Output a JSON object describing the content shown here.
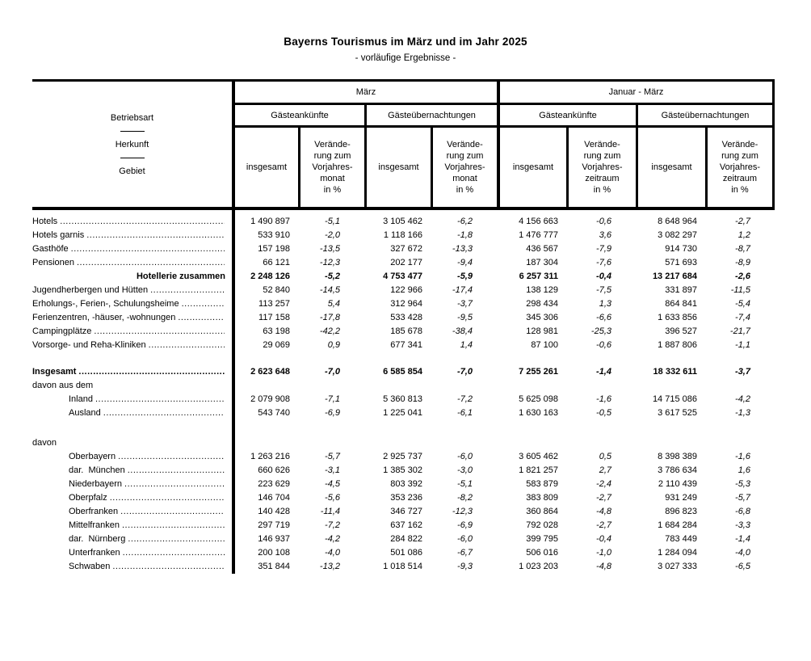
{
  "page": {
    "title": "Bayerns Tourismus im März und im Jahr 2025",
    "subtitle": "- vorläufige Ergebnisse -"
  },
  "table": {
    "stub": {
      "line1": "Betriebsart",
      "line2": "Herkunft",
      "line3": "Gebiet"
    },
    "periods": {
      "maerz": {
        "label": "März",
        "measure1": "Gästeankünfte",
        "measure2": "Gästeübernachtungen",
        "sub_total": "insgesamt",
        "sub_change": "Verände-\nrung zum\nVorjahres-\nmonat\nin %"
      },
      "januar_maerz": {
        "label": "Januar - März",
        "measure1": "Gästeankünfte",
        "measure2": "Gästeübernachtungen",
        "sub_total": "insgesamt",
        "sub_change": "Verände-\nrung zum\nVorjahres-\nzeitraum\nin %"
      }
    },
    "rows": [
      {
        "label": "Hotels",
        "style": "normal",
        "indent": false,
        "dots": true,
        "gap_before": 0,
        "values": [
          "1 490 897",
          "-5,1",
          "3 105 462",
          "-6,2",
          "4 156 663",
          "-0,6",
          "8 648 964",
          "-2,7"
        ]
      },
      {
        "label": "Hotels garnis",
        "style": "normal",
        "indent": false,
        "dots": true,
        "gap_before": 0,
        "values": [
          "533 910",
          "-2,0",
          "1 118 166",
          "-1,8",
          "1 476 777",
          "3,6",
          "3 082 297",
          "1,2"
        ]
      },
      {
        "label": "Gasthöfe",
        "style": "normal",
        "indent": false,
        "dots": true,
        "gap_before": 0,
        "values": [
          "157 198",
          "-13,5",
          "327 672",
          "-13,3",
          "436 567",
          "-7,9",
          "914 730",
          "-8,7"
        ]
      },
      {
        "label": "Pensionen",
        "style": "normal",
        "indent": false,
        "dots": true,
        "gap_before": 0,
        "values": [
          "66 121",
          "-12,3",
          "202 177",
          "-9,4",
          "187 304",
          "-7,6",
          "571 693",
          "-8,9"
        ]
      },
      {
        "label": "Hotellerie zusammen",
        "style": "subtotal",
        "indent": false,
        "dots": false,
        "gap_before": 0,
        "values": [
          "2 248 126",
          "-5,2",
          "4 753 477",
          "-5,9",
          "6 257 311",
          "-0,4",
          "13 217 684",
          "-2,6"
        ]
      },
      {
        "label": "Jugendherbergen und Hütten",
        "style": "normal",
        "indent": false,
        "dots": true,
        "gap_before": 0,
        "values": [
          "52 840",
          "-14,5",
          "122 966",
          "-17,4",
          "138 129",
          "-7,5",
          "331 897",
          "-11,5"
        ]
      },
      {
        "label": "Erholungs-, Ferien-, Schulungsheime",
        "style": "normal",
        "indent": false,
        "dots": true,
        "gap_before": 0,
        "values": [
          "113 257",
          "5,4",
          "312 964",
          "-3,7",
          "298 434",
          "1,3",
          "864 841",
          "-5,4"
        ]
      },
      {
        "label": "Ferienzentren, -häuser, -wohnungen",
        "style": "normal",
        "indent": false,
        "dots": true,
        "gap_before": 0,
        "values": [
          "117 158",
          "-17,8",
          "533 428",
          "-9,5",
          "345 306",
          "-6,6",
          "1 633 856",
          "-7,4"
        ]
      },
      {
        "label": "Campingplätze",
        "style": "normal",
        "indent": false,
        "dots": true,
        "gap_before": 0,
        "values": [
          "63 198",
          "-42,2",
          "185 678",
          "-38,4",
          "128 981",
          "-25,3",
          "396 527",
          "-21,7"
        ]
      },
      {
        "label": "Vorsorge- und Reha-Kliniken",
        "style": "normal",
        "indent": false,
        "dots": true,
        "gap_before": 0,
        "values": [
          "29 069",
          "0,9",
          "677 341",
          "1,4",
          "87 100",
          "-0,6",
          "1 887 806",
          "-1,1"
        ]
      },
      {
        "label": "Insgesamt",
        "style": "total",
        "indent": false,
        "dots": true,
        "gap_before": 16,
        "values": [
          "2 623 648",
          "-7,0",
          "6 585 854",
          "-7,0",
          "7 255 261",
          "-1,4",
          "18 332 611",
          "-3,7"
        ]
      },
      {
        "label": "davon aus dem",
        "style": "normal",
        "indent": false,
        "dots": false,
        "gap_before": 0,
        "values": []
      },
      {
        "label": "Inland",
        "style": "normal",
        "indent": true,
        "dots": true,
        "gap_before": 0,
        "values": [
          "2 079 908",
          "-7,1",
          "5 360 813",
          "-7,2",
          "5 625 098",
          "-1,6",
          "14 715 086",
          "-4,2"
        ]
      },
      {
        "label": "Ausland",
        "style": "normal",
        "indent": true,
        "dots": true,
        "gap_before": 0,
        "values": [
          "543 740",
          "-6,9",
          "1 225 041",
          "-6,1",
          "1 630 163",
          "-0,5",
          "3 617 525",
          "-1,3"
        ]
      },
      {
        "label": "davon",
        "style": "normal",
        "indent": false,
        "dots": false,
        "gap_before": 20,
        "values": []
      },
      {
        "label": "Oberbayern",
        "style": "normal",
        "indent": true,
        "dots": true,
        "gap_before": 0,
        "values": [
          "1 263 216",
          "-5,7",
          "2 925 737",
          "-6,0",
          "3 605 462",
          "0,5",
          "8 398 389",
          "-1,6"
        ]
      },
      {
        "label": "dar.  München",
        "style": "normal",
        "indent": true,
        "dots": true,
        "gap_before": 0,
        "values": [
          "660 626",
          "-3,1",
          "1 385 302",
          "-3,0",
          "1 821 257",
          "2,7",
          "3 786 634",
          "1,6"
        ]
      },
      {
        "label": "Niederbayern",
        "style": "normal",
        "indent": true,
        "dots": true,
        "gap_before": 0,
        "values": [
          "223 629",
          "-4,5",
          "803 392",
          "-5,1",
          "583 879",
          "-2,4",
          "2 110 439",
          "-5,3"
        ]
      },
      {
        "label": "Oberpfalz",
        "style": "normal",
        "indent": true,
        "dots": true,
        "gap_before": 0,
        "values": [
          "146 704",
          "-5,6",
          "353 236",
          "-8,2",
          "383 809",
          "-2,7",
          "931 249",
          "-5,7"
        ]
      },
      {
        "label": "Oberfranken",
        "style": "normal",
        "indent": true,
        "dots": true,
        "gap_before": 0,
        "values": [
          "140 428",
          "-11,4",
          "346 727",
          "-12,3",
          "360 864",
          "-4,8",
          "896 823",
          "-6,8"
        ]
      },
      {
        "label": "Mittelfranken",
        "style": "normal",
        "indent": true,
        "dots": true,
        "gap_before": 0,
        "values": [
          "297 719",
          "-7,2",
          "637 162",
          "-6,9",
          "792 028",
          "-2,7",
          "1 684 284",
          "-3,3"
        ]
      },
      {
        "label": "dar.  Nürnberg",
        "style": "normal",
        "indent": true,
        "dots": true,
        "gap_before": 0,
        "values": [
          "146 937",
          "-4,2",
          "284 822",
          "-6,0",
          "399 795",
          "-0,4",
          "783 449",
          "-1,4"
        ]
      },
      {
        "label": "Unterfranken",
        "style": "normal",
        "indent": true,
        "dots": true,
        "gap_before": 0,
        "values": [
          "200 108",
          "-4,0",
          "501 086",
          "-6,7",
          "506 016",
          "-1,0",
          "1 284 094",
          "-4,0"
        ]
      },
      {
        "label": "Schwaben",
        "style": "normal",
        "indent": true,
        "dots": true,
        "gap_before": 0,
        "values": [
          "351 844",
          "-13,2",
          "1 018 514",
          "-9,3",
          "1 023 203",
          "-4,8",
          "3 027 333",
          "-6,5"
        ]
      }
    ]
  }
}
